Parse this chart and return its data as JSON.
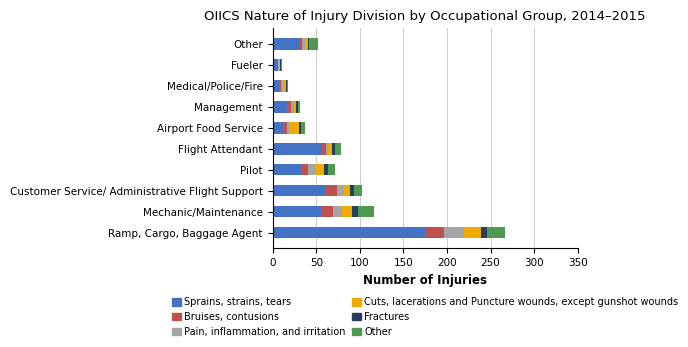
{
  "title": "OIICS Nature of Injury Division by Occupational Group, 2014–2015",
  "xlabel": "Number of Injuries",
  "categories": [
    "Ramp, Cargo, Baggage Agent",
    "Mechanic/Maintenance",
    "Customer Service/ Administrative Flight Support",
    "Pilot",
    "Flight Attendant",
    "Airport Food Service",
    "Management",
    "Medical/Police/Fire",
    "Fueler",
    "Other"
  ],
  "series": {
    "Sprains, strains, tears": [
      175,
      55,
      60,
      32,
      55,
      12,
      16,
      7,
      5,
      30
    ],
    "Bruises, contusions": [
      22,
      14,
      14,
      9,
      6,
      4,
      5,
      2,
      1,
      4
    ],
    "Pain, inflammation, and irritation": [
      22,
      10,
      7,
      7,
      3,
      3,
      3,
      3,
      1,
      3
    ],
    "Cuts, lacerations and Puncture wounds, except gunshot wounds": [
      20,
      12,
      8,
      11,
      4,
      11,
      3,
      3,
      1,
      3
    ],
    "Fractures": [
      7,
      7,
      4,
      4,
      3,
      2,
      2,
      1,
      1,
      2
    ],
    "Other": [
      20,
      18,
      9,
      9,
      7,
      5,
      2,
      2,
      2,
      10
    ]
  },
  "colors": {
    "Sprains, strains, tears": "#4472C4",
    "Bruises, contusions": "#C0504D",
    "Pain, inflammation, and irritation": "#A5A5A5",
    "Cuts, lacerations and Puncture wounds, except gunshot wounds": "#F0AB00",
    "Fractures": "#243F60",
    "Other": "#4E9A51"
  },
  "xlim": [
    0,
    350
  ],
  "xticks": [
    0,
    50,
    100,
    150,
    200,
    250,
    300,
    350
  ],
  "bar_height": 0.55,
  "title_fontsize": 9.5,
  "axis_label_fontsize": 8.5,
  "tick_fontsize": 7.5,
  "legend_fontsize": 7.0,
  "legend_order_left": [
    "Sprains, strains, tears",
    "Pain, inflammation, and irritation",
    "Fractures"
  ],
  "legend_order_right": [
    "Bruises, contusions",
    "Cuts, lacerations and Puncture wounds, except gunshot wounds",
    "Other"
  ]
}
